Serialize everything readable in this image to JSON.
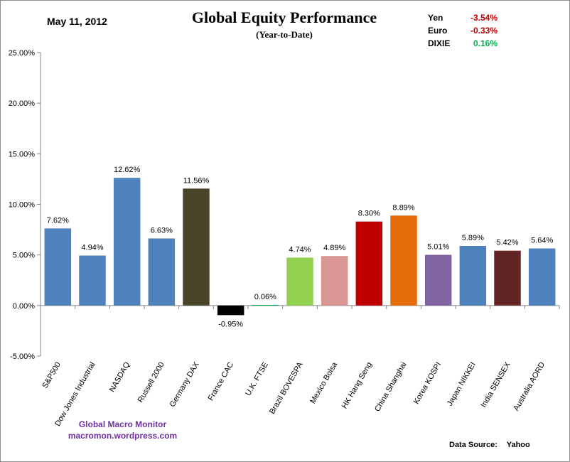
{
  "header": {
    "date": "May 11, 2012",
    "title": "Global Equity Performance",
    "subtitle": "(Year-to-Date)"
  },
  "fx": [
    {
      "label": "Yen",
      "value": "-3.54%",
      "color": "#c00000"
    },
    {
      "label": "Euro",
      "value": "-0.33%",
      "color": "#c00000"
    },
    {
      "label": "DIXIE",
      "value": "0.16%",
      "color": "#00b050"
    }
  ],
  "watermark": {
    "line1": "Global  Macro  Monitor",
    "line2": "macromon.wordpress.com"
  },
  "source": {
    "label": "Data Source:",
    "value": "Yahoo"
  },
  "chart_data": {
    "type": "bar",
    "title": "Global Equity Performance",
    "subtitle": "(Year-to-Date)",
    "xlabel": "",
    "ylabel": "",
    "ylim": [
      -5,
      25
    ],
    "yticks": [
      -5,
      0,
      5,
      10,
      15,
      20,
      25
    ],
    "ytick_labels": [
      "-5.00%",
      "0.00%",
      "5.00%",
      "10.00%",
      "15.00%",
      "20.00%",
      "25.00%"
    ],
    "grid": false,
    "categories": [
      "S&P500",
      "Dow Jones Industrial",
      "NASDAQ",
      "Russell 2000",
      "Germany DAX",
      "France CAC",
      "U.K. FTSE",
      "Brazil BOVESPA",
      "Mexico Bolsa",
      "HK  Hang Seng",
      "China Shanghai",
      "Korea KOSPI",
      "Japan NIKKEI",
      "India SENSEX",
      "Australia AORD"
    ],
    "values": [
      7.62,
      4.94,
      12.62,
      6.63,
      11.56,
      -0.95,
      0.06,
      4.74,
      4.89,
      8.3,
      8.89,
      5.01,
      5.89,
      5.42,
      5.64
    ],
    "value_labels": [
      "7.62%",
      "4.94%",
      "12.62%",
      "6.63%",
      "11.56%",
      "-0.95%",
      "0.06%",
      "4.74%",
      "4.89%",
      "8.30%",
      "8.89%",
      "5.01%",
      "5.89%",
      "5.42%",
      "5.64%"
    ],
    "colors": [
      "#4f81bd",
      "#4f81bd",
      "#4f81bd",
      "#4f81bd",
      "#4a452a",
      "#000000",
      "#00b050",
      "#92d050",
      "#d99694",
      "#c00000",
      "#e46c0a",
      "#8064a2",
      "#4f81bd",
      "#632523",
      "#4f81bd"
    ]
  }
}
